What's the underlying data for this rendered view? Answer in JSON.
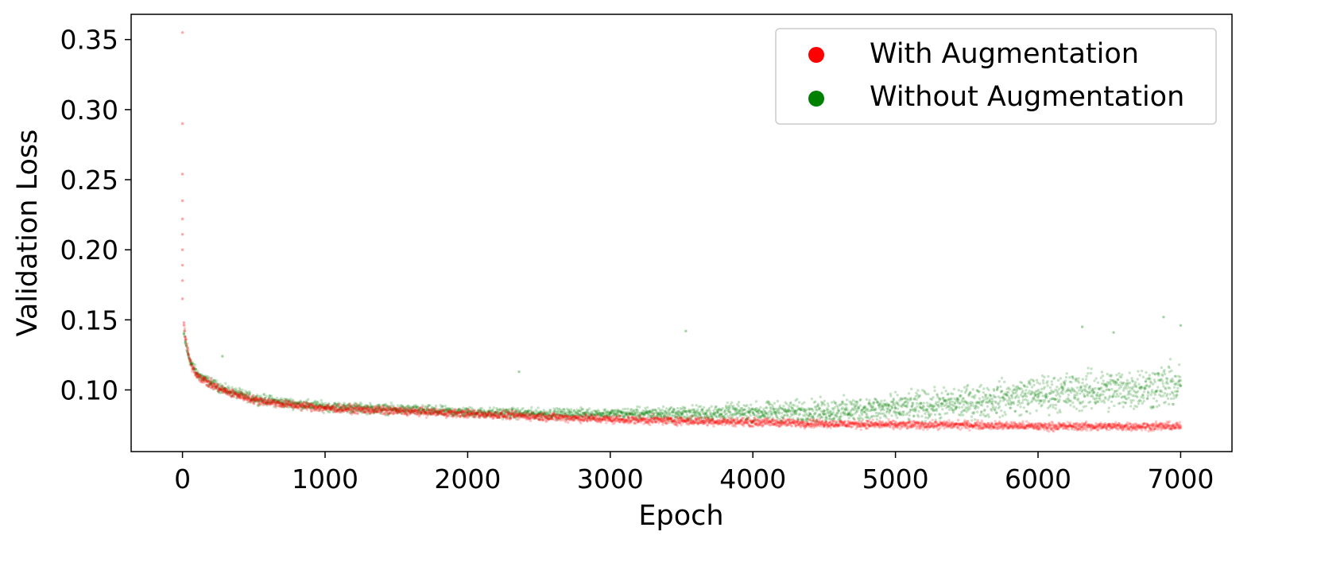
{
  "chart_data": {
    "type": "scatter",
    "xlabel": "Epoch",
    "ylabel": "Validation Loss",
    "xlim": [
      -360,
      7360
    ],
    "ylim": [
      0.056,
      0.368
    ],
    "xticks": [
      0,
      1000,
      2000,
      3000,
      4000,
      5000,
      6000,
      7000
    ],
    "xtick_labels": [
      "0",
      "1000",
      "2000",
      "3000",
      "4000",
      "5000",
      "6000",
      "7000"
    ],
    "yticks": [
      0.1,
      0.15,
      0.2,
      0.25,
      0.3,
      0.35
    ],
    "ytick_labels": [
      "0.10",
      "0.15",
      "0.20",
      "0.25",
      "0.30",
      "0.35"
    ],
    "grid": false,
    "legend_position": "top-right",
    "series": [
      {
        "name": "With Augmentation",
        "color": "#ff0000",
        "points": [
          [
            0,
            0.355
          ],
          [
            0,
            0.29
          ],
          [
            0,
            0.254
          ],
          [
            0,
            0.235
          ],
          [
            0,
            0.222
          ],
          [
            0,
            0.211
          ],
          [
            0,
            0.2
          ],
          [
            0,
            0.189
          ],
          [
            0,
            0.178
          ],
          [
            0,
            0.165
          ],
          [
            10,
            0.148
          ],
          [
            20,
            0.138
          ],
          [
            40,
            0.126
          ],
          [
            60,
            0.118
          ],
          [
            100,
            0.111
          ],
          [
            150,
            0.107
          ],
          [
            200,
            0.104
          ],
          [
            300,
            0.099
          ],
          [
            400,
            0.096
          ],
          [
            500,
            0.093
          ],
          [
            700,
            0.09
          ],
          [
            1000,
            0.087
          ],
          [
            1500,
            0.085
          ],
          [
            2000,
            0.083
          ],
          [
            2500,
            0.081
          ],
          [
            3000,
            0.079
          ],
          [
            3500,
            0.078
          ],
          [
            4000,
            0.077
          ],
          [
            4500,
            0.076
          ],
          [
            5000,
            0.075
          ],
          [
            5500,
            0.075
          ],
          [
            6000,
            0.074
          ],
          [
            6500,
            0.074
          ],
          [
            7000,
            0.074
          ]
        ]
      },
      {
        "name": "Without Augmentation",
        "color": "#008000",
        "points": [
          [
            10,
            0.14
          ],
          [
            20,
            0.134
          ],
          [
            40,
            0.125
          ],
          [
            60,
            0.119
          ],
          [
            100,
            0.112
          ],
          [
            150,
            0.108
          ],
          [
            200,
            0.105
          ],
          [
            300,
            0.1
          ],
          [
            400,
            0.097
          ],
          [
            500,
            0.094
          ],
          [
            700,
            0.091
          ],
          [
            1000,
            0.088
          ],
          [
            1500,
            0.086
          ],
          [
            2000,
            0.084
          ],
          [
            2500,
            0.083
          ],
          [
            3000,
            0.083
          ],
          [
            3500,
            0.083
          ],
          [
            4000,
            0.084
          ],
          [
            4500,
            0.085
          ],
          [
            5000,
            0.087
          ],
          [
            5500,
            0.091
          ],
          [
            6000,
            0.097
          ],
          [
            6500,
            0.1
          ],
          [
            7000,
            0.103
          ]
        ],
        "outliers": [
          [
            280,
            0.124
          ],
          [
            2360,
            0.113
          ],
          [
            3530,
            0.142
          ],
          [
            6310,
            0.145
          ],
          [
            6880,
            0.152
          ],
          [
            7000,
            0.146
          ],
          [
            6530,
            0.141
          ]
        ]
      }
    ]
  }
}
